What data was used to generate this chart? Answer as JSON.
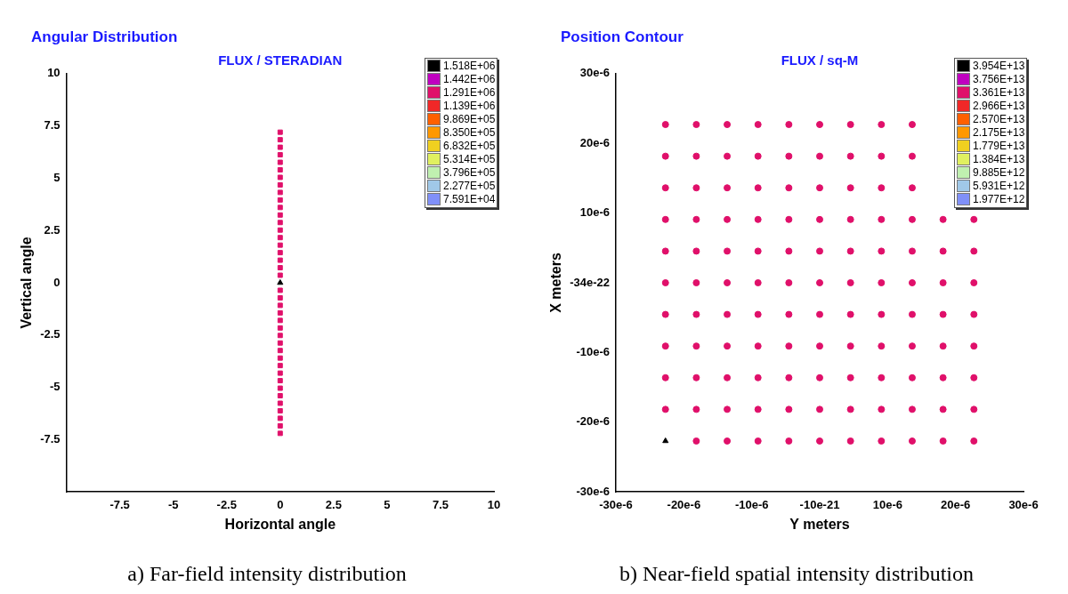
{
  "chart_data": [
    {
      "type": "scatter",
      "title": "Angular Distribution",
      "subtitle": "FLUX / STERADIAN",
      "xlabel": "Horizontal angle",
      "ylabel": "Vertical angle",
      "xlim": [
        -10,
        10
      ],
      "xticks": [
        {
          "value": -10,
          "label": null
        },
        -7.5,
        -5,
        -2.5,
        0,
        2.5,
        5,
        7.5,
        10
      ],
      "ylim": [
        -10,
        10
      ],
      "yticks": [
        {
          "value": -10,
          "label": null
        },
        -7.5,
        -5,
        -2.5,
        0,
        2.5,
        5,
        7.5,
        10
      ],
      "grid": false,
      "legend": "top right",
      "annotations": [
        "a)  Far-field intensity distribution"
      ],
      "series": [
        {
          "name": "1.518E+06",
          "color": "#000000",
          "marker": "triangle",
          "x": [
            0
          ],
          "values": [
            0
          ]
        },
        {
          "name": "1.442E+06",
          "color": "#c000c0"
        },
        {
          "name": "1.291E+06",
          "color": "#e0106a",
          "marker": "square",
          "x": [
            0,
            0,
            0,
            0,
            0,
            0,
            0,
            0,
            0,
            0,
            0,
            0,
            0,
            0,
            0,
            0,
            0,
            0,
            0,
            0,
            0,
            0,
            0,
            0,
            0,
            0,
            0,
            0,
            0,
            0,
            0,
            0,
            0,
            0,
            0,
            0,
            0,
            0,
            0,
            0
          ],
          "values": [
            -7.2,
            -6.84,
            -6.48,
            -6.12,
            -5.76,
            -5.4,
            -5.04,
            -4.68,
            -4.32,
            -3.96,
            -3.6,
            -3.24,
            -2.88,
            -2.52,
            -2.16,
            -1.8,
            -1.44,
            -1.08,
            -0.72,
            -0.36,
            0.36,
            0.72,
            1.08,
            1.44,
            1.8,
            2.16,
            2.52,
            2.88,
            3.24,
            3.6,
            3.96,
            4.32,
            4.68,
            5.04,
            5.4,
            5.76,
            6.12,
            6.48,
            6.84,
            7.2
          ]
        },
        {
          "name": "1.139E+06",
          "color": "#f02828"
        },
        {
          "name": "9.869E+05",
          "color": "#ff6000"
        },
        {
          "name": "8.350E+05",
          "color": "#ff9800"
        },
        {
          "name": "6.832E+05",
          "color": "#f0d020"
        },
        {
          "name": "5.314E+05",
          "color": "#e0f060"
        },
        {
          "name": "3.796E+05",
          "color": "#c0f0b0"
        },
        {
          "name": "2.277E+05",
          "color": "#a0c8e8"
        },
        {
          "name": "7.591E+04",
          "color": "#8090f8"
        }
      ]
    },
    {
      "type": "scatter",
      "title": "Position Contour",
      "subtitle": "FLUX / sq-M",
      "xlabel": "Y meters",
      "ylabel": "X meters",
      "xlim": [
        -3e-05,
        3e-05
      ],
      "xticks": [
        {
          "value": -3e-05,
          "label": "-30e-6"
        },
        {
          "value": -2e-05,
          "label": "-20e-6"
        },
        {
          "value": -1e-05,
          "label": "-10e-6"
        },
        {
          "value": 0,
          "label": "-10e-21"
        },
        {
          "value": 1e-05,
          "label": "10e-6"
        },
        {
          "value": 2e-05,
          "label": "20e-6"
        },
        {
          "value": 3e-05,
          "label": "30e-6"
        }
      ],
      "ylim": [
        -3e-05,
        3e-05
      ],
      "yticks": [
        {
          "value": -3e-05,
          "label": "-30e-6"
        },
        {
          "value": -2e-05,
          "label": "-20e-6"
        },
        {
          "value": -1e-05,
          "label": "-10e-6"
        },
        {
          "value": 0,
          "label": "-34e-22"
        },
        {
          "value": 1e-05,
          "label": "10e-6"
        },
        {
          "value": 2e-05,
          "label": "20e-6"
        },
        {
          "value": 3e-05,
          "label": "30e-6"
        }
      ],
      "grid": false,
      "legend": "top right",
      "annotations": [
        "b) Near-field spatial intensity distribution"
      ],
      "series": [
        {
          "name": "3.954E+13",
          "color": "#000000",
          "marker": "triangle",
          "x": [
            -2.27e-05
          ],
          "values": [
            -2.27e-05
          ]
        },
        {
          "name": "3.756E+13",
          "color": "#c000c0"
        },
        {
          "name": "3.361E+13",
          "color": "#e0106a",
          "marker": "circle",
          "x": [
            -2.27e-05,
            -1.816e-05,
            -1.362e-05,
            -9.08e-06,
            -4.54e-06,
            0,
            4.54e-06,
            9.08e-06,
            1.362e-05,
            -2.27e-05,
            -1.816e-05,
            -1.362e-05,
            -9.08e-06,
            -4.54e-06,
            0,
            4.54e-06,
            9.08e-06,
            1.362e-05,
            -2.27e-05,
            -1.816e-05,
            -1.362e-05,
            -9.08e-06,
            -4.54e-06,
            0,
            4.54e-06,
            9.08e-06,
            1.362e-05,
            -2.27e-05,
            -1.816e-05,
            -1.362e-05,
            -9.08e-06,
            -4.54e-06,
            0,
            4.54e-06,
            9.08e-06,
            1.362e-05,
            1.816e-05,
            2.27e-05,
            -2.27e-05,
            -1.816e-05,
            -1.362e-05,
            -9.08e-06,
            -4.54e-06,
            0,
            4.54e-06,
            9.08e-06,
            1.362e-05,
            1.816e-05,
            2.27e-05,
            -2.27e-05,
            -1.816e-05,
            -1.362e-05,
            -9.08e-06,
            -4.54e-06,
            0,
            4.54e-06,
            9.08e-06,
            1.362e-05,
            1.816e-05,
            2.27e-05,
            -2.27e-05,
            -1.816e-05,
            -1.362e-05,
            -9.08e-06,
            -4.54e-06,
            0,
            4.54e-06,
            9.08e-06,
            1.362e-05,
            1.816e-05,
            2.27e-05,
            -2.27e-05,
            -1.816e-05,
            -1.362e-05,
            -9.08e-06,
            -4.54e-06,
            0,
            4.54e-06,
            9.08e-06,
            1.362e-05,
            1.816e-05,
            2.27e-05,
            -2.27e-05,
            -1.816e-05,
            -1.362e-05,
            -9.08e-06,
            -4.54e-06,
            0,
            4.54e-06,
            9.08e-06,
            1.362e-05,
            1.816e-05,
            2.27e-05,
            -2.27e-05,
            -1.816e-05,
            -1.362e-05,
            -9.08e-06,
            -4.54e-06,
            0,
            4.54e-06,
            9.08e-06,
            1.362e-05,
            1.816e-05,
            2.27e-05,
            -1.816e-05,
            -1.362e-05,
            -9.08e-06,
            -4.54e-06,
            0,
            4.54e-06,
            9.08e-06,
            1.362e-05,
            1.816e-05,
            2.27e-05
          ],
          "values": [
            2.27e-05,
            2.27e-05,
            2.27e-05,
            2.27e-05,
            2.27e-05,
            2.27e-05,
            2.27e-05,
            2.27e-05,
            2.27e-05,
            1.816e-05,
            1.816e-05,
            1.816e-05,
            1.816e-05,
            1.816e-05,
            1.816e-05,
            1.816e-05,
            1.816e-05,
            1.816e-05,
            1.362e-05,
            1.362e-05,
            1.362e-05,
            1.362e-05,
            1.362e-05,
            1.362e-05,
            1.362e-05,
            1.362e-05,
            1.362e-05,
            9.08e-06,
            9.08e-06,
            9.08e-06,
            9.08e-06,
            9.08e-06,
            9.08e-06,
            9.08e-06,
            9.08e-06,
            9.08e-06,
            9.08e-06,
            9.08e-06,
            4.54e-06,
            4.54e-06,
            4.54e-06,
            4.54e-06,
            4.54e-06,
            4.54e-06,
            4.54e-06,
            4.54e-06,
            4.54e-06,
            4.54e-06,
            4.54e-06,
            0,
            0,
            0,
            0,
            0,
            0,
            0,
            0,
            0,
            0,
            0,
            -4.54e-06,
            -4.54e-06,
            -4.54e-06,
            -4.54e-06,
            -4.54e-06,
            -4.54e-06,
            -4.54e-06,
            -4.54e-06,
            -4.54e-06,
            -4.54e-06,
            -4.54e-06,
            -9.08e-06,
            -9.08e-06,
            -9.08e-06,
            -9.08e-06,
            -9.08e-06,
            -9.08e-06,
            -9.08e-06,
            -9.08e-06,
            -9.08e-06,
            -9.08e-06,
            -9.08e-06,
            -1.362e-05,
            -1.362e-05,
            -1.362e-05,
            -1.362e-05,
            -1.362e-05,
            -1.362e-05,
            -1.362e-05,
            -1.362e-05,
            -1.362e-05,
            -1.362e-05,
            -1.362e-05,
            -1.816e-05,
            -1.816e-05,
            -1.816e-05,
            -1.816e-05,
            -1.816e-05,
            -1.816e-05,
            -1.816e-05,
            -1.816e-05,
            -1.816e-05,
            -1.816e-05,
            -1.816e-05,
            -2.27e-05,
            -2.27e-05,
            -2.27e-05,
            -2.27e-05,
            -2.27e-05,
            -2.27e-05,
            -2.27e-05,
            -2.27e-05,
            -2.27e-05,
            -2.27e-05
          ]
        },
        {
          "name": "2.966E+13",
          "color": "#f02828"
        },
        {
          "name": "2.570E+13",
          "color": "#ff6000"
        },
        {
          "name": "2.175E+13",
          "color": "#ff9800"
        },
        {
          "name": "1.779E+13",
          "color": "#f0d020"
        },
        {
          "name": "1.384E+13",
          "color": "#e0f060"
        },
        {
          "name": "9.885E+12",
          "color": "#c0f0b0"
        },
        {
          "name": "5.931E+12",
          "color": "#a0c8e8"
        },
        {
          "name": "1.977E+12",
          "color": "#8090f8"
        }
      ]
    }
  ]
}
